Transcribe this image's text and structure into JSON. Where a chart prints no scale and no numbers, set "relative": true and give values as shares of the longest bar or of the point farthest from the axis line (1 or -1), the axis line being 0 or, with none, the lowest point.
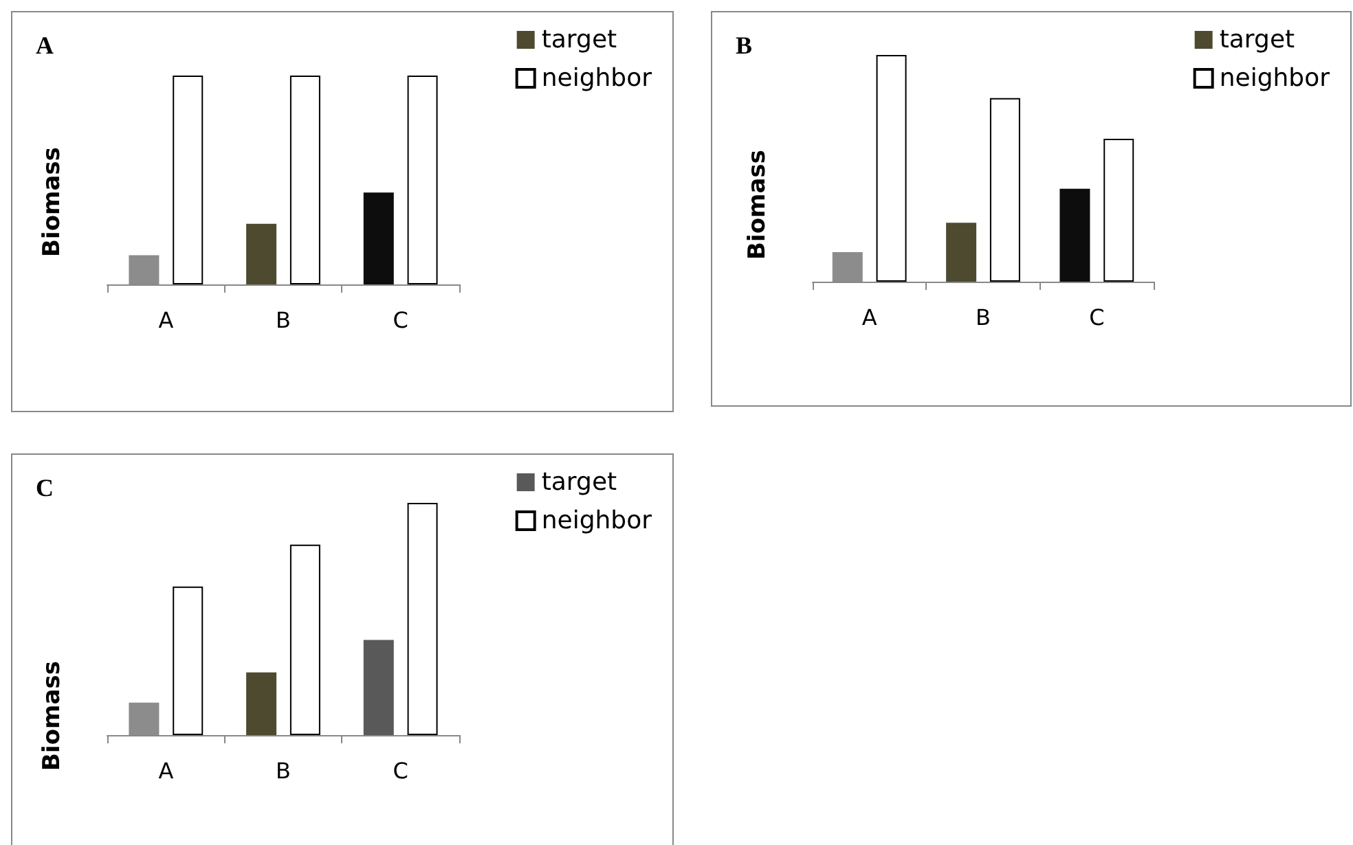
{
  "chart_data": [
    {
      "type": "bar",
      "title": "A",
      "ylabel": "Biomass",
      "categories": [
        "A",
        "B",
        "C"
      ],
      "relative": true,
      "legend": "top right",
      "series": [
        {
          "name": "target",
          "color": "#4d4a30",
          "colors": [
            "#8c8c8c",
            "#4d4a30",
            "#0d0d0d"
          ],
          "values": [
            0.14,
            0.29,
            0.44
          ]
        },
        {
          "name": "neighbor",
          "color": "#ffffff",
          "values": [
            1,
            1,
            1
          ]
        }
      ]
    },
    {
      "type": "bar",
      "title": "B",
      "ylabel": "Biomass",
      "categories": [
        "A",
        "B",
        "C"
      ],
      "relative": true,
      "legend": "top right",
      "series": [
        {
          "name": "target",
          "color": "#4d4a30",
          "colors": [
            "#8c8c8c",
            "#4d4a30",
            "#0d0d0d"
          ],
          "values": [
            0.13,
            0.26,
            0.41
          ]
        },
        {
          "name": "neighbor",
          "color": "#ffffff",
          "values": [
            1,
            0.81,
            0.63
          ]
        }
      ]
    },
    {
      "type": "bar",
      "title": "C",
      "ylabel": "Biomass",
      "categories": [
        "A",
        "B",
        "C"
      ],
      "relative": true,
      "legend": "top right",
      "series": [
        {
          "name": "target",
          "color": "#595959",
          "colors": [
            "#8c8c8c",
            "#4d4a30",
            "#595959"
          ],
          "values": [
            0.14,
            0.27,
            0.41
          ]
        },
        {
          "name": "neighbor",
          "color": "#ffffff",
          "values": [
            0.64,
            0.82,
            1
          ]
        }
      ]
    }
  ]
}
